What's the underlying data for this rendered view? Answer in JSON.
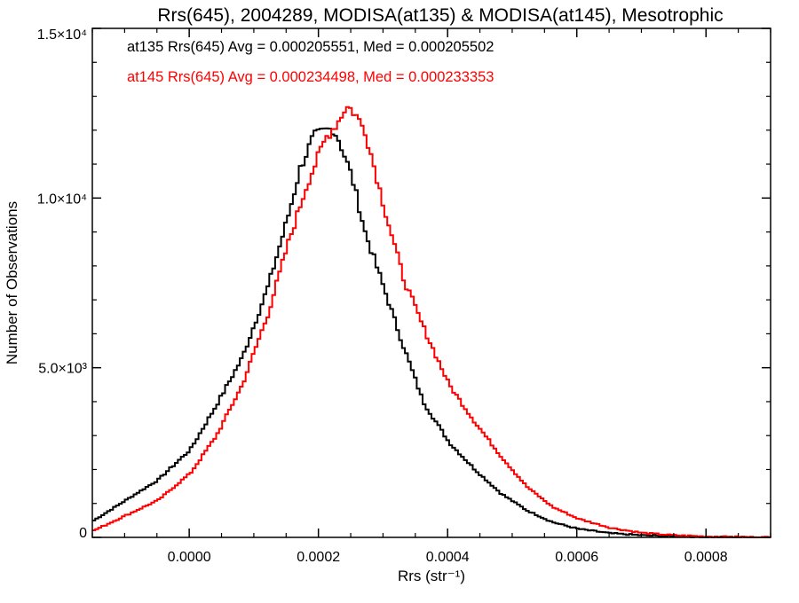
{
  "chart_data": {
    "type": "line",
    "title": "Rrs(645), 2004289, MODISA(at135) & MODISA(at145), Mesotrophic",
    "xlabel": "Rrs (str⁻¹)",
    "ylabel": "Number of Observations",
    "xlim": [
      -0.00015,
      0.0009
    ],
    "ylim": [
      0,
      15000
    ],
    "x_ticks": [
      {
        "value": 0.0,
        "label": "0.0000"
      },
      {
        "value": 0.0002,
        "label": "0.0002"
      },
      {
        "value": 0.0004,
        "label": "0.0004"
      },
      {
        "value": 0.0006,
        "label": "0.0006"
      },
      {
        "value": 0.0008,
        "label": "0.0008"
      }
    ],
    "y_ticks": [
      {
        "value": 0,
        "label": "0"
      },
      {
        "value": 5000,
        "label": "5.0×10³"
      },
      {
        "value": 10000,
        "label": "1.0×10⁴"
      },
      {
        "value": 15000,
        "label": "1.5×10⁴"
      }
    ],
    "grid": false,
    "legend_position": "top-left",
    "legend": [
      {
        "text": "at135 Rrs(645) Avg = 0.000205551, Med = 0.000205502",
        "color": "#000000"
      },
      {
        "text": "at145 Rrs(645) Avg = 0.000234498, Med = 0.000233353",
        "color": "#ff0000"
      }
    ],
    "series": [
      {
        "color": "#000000",
        "step": true,
        "points": [
          [
            -0.00015,
            500
          ],
          [
            -0.0001,
            1100
          ],
          [
            -5e-05,
            1700
          ],
          [
            0.0,
            2600
          ],
          [
            4e-05,
            3900
          ],
          [
            8e-05,
            5300
          ],
          [
            0.00012,
            7400
          ],
          [
            0.00015,
            9400
          ],
          [
            0.00017,
            10900
          ],
          [
            0.00019,
            11800
          ],
          [
            0.00021,
            12000
          ],
          [
            0.00022,
            12050
          ],
          [
            0.00023,
            11700
          ],
          [
            0.00025,
            10600
          ],
          [
            0.00027,
            9000
          ],
          [
            0.0003,
            7300
          ],
          [
            0.00033,
            5600
          ],
          [
            0.00036,
            4000
          ],
          [
            0.0004,
            2800
          ],
          [
            0.00044,
            2000
          ],
          [
            0.00048,
            1300
          ],
          [
            0.00052,
            800
          ],
          [
            0.00056,
            450
          ],
          [
            0.0006,
            250
          ],
          [
            0.00065,
            120
          ],
          [
            0.0007,
            60
          ],
          [
            0.00075,
            30
          ],
          [
            0.0008,
            10
          ],
          [
            0.0009,
            0
          ]
        ]
      },
      {
        "color": "#ff0000",
        "step": true,
        "points": [
          [
            -0.00015,
            200
          ],
          [
            -0.0001,
            650
          ],
          [
            -5e-05,
            1100
          ],
          [
            0.0,
            1900
          ],
          [
            4e-05,
            3000
          ],
          [
            8e-05,
            4500
          ],
          [
            0.00012,
            6600
          ],
          [
            0.00015,
            8600
          ],
          [
            0.00018,
            10400
          ],
          [
            0.00021,
            11800
          ],
          [
            0.00023,
            12300
          ],
          [
            0.00024,
            12700
          ],
          [
            0.00025,
            12600
          ],
          [
            0.00027,
            12000
          ],
          [
            0.0003,
            9700
          ],
          [
            0.00033,
            7600
          ],
          [
            0.00036,
            6200
          ],
          [
            0.0004,
            4500
          ],
          [
            0.00044,
            3400
          ],
          [
            0.00048,
            2400
          ],
          [
            0.00052,
            1500
          ],
          [
            0.00056,
            900
          ],
          [
            0.0006,
            550
          ],
          [
            0.00065,
            280
          ],
          [
            0.0007,
            130
          ],
          [
            0.00075,
            60
          ],
          [
            0.0008,
            25
          ],
          [
            0.0009,
            0
          ]
        ]
      }
    ]
  }
}
